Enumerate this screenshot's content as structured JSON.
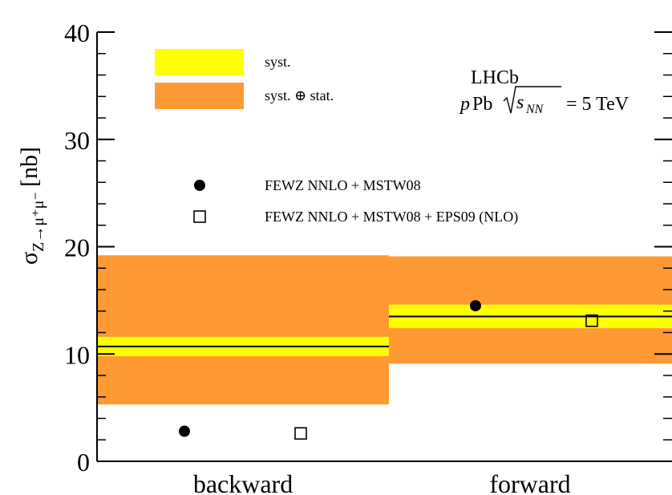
{
  "chart_data": {
    "type": "scatter",
    "ylabel": {
      "main": "σ",
      "subscript": "Z→μ⁺μ⁻",
      "unit": "[nb]"
    },
    "ylim": [
      0,
      40
    ],
    "yticks": [
      0,
      10,
      20,
      30,
      40
    ],
    "categories": [
      "backward",
      "forward"
    ],
    "measurements": [
      {
        "category": "backward",
        "value": 10.7,
        "syst": [
          9.8,
          11.6
        ],
        "total": [
          5.3,
          19.2
        ]
      },
      {
        "category": "forward",
        "value": 13.5,
        "syst": [
          12.4,
          14.6
        ],
        "total": [
          9.1,
          19.1
        ]
      }
    ],
    "series": [
      {
        "name": "FEWZ NNLO + MSTW08",
        "marker": "filled-circle",
        "points": [
          {
            "category": "backward",
            "y": 2.8
          },
          {
            "category": "forward",
            "y": 14.5
          }
        ]
      },
      {
        "name": "FEWZ NNLO + MSTW08 + EPS09 (NLO)",
        "marker": "open-square",
        "points": [
          {
            "category": "backward",
            "y": 2.6
          },
          {
            "category": "forward",
            "y": 13.1
          }
        ]
      }
    ],
    "bands": [
      {
        "name": "syst.",
        "color": "#ffff00"
      },
      {
        "name": "syst. ⊕ stat.",
        "color": "#ff9933"
      }
    ],
    "annotation": {
      "experiment": "LHCb",
      "system_p": "p",
      "system_pb": "Pb",
      "sqrt_s": "s",
      "sqrt_s_sub": "NN",
      "energy": "= 5 TeV"
    },
    "grid": false
  },
  "colors": {
    "syst": "#ffff00",
    "total": "#ff9933",
    "line": "#000000"
  }
}
